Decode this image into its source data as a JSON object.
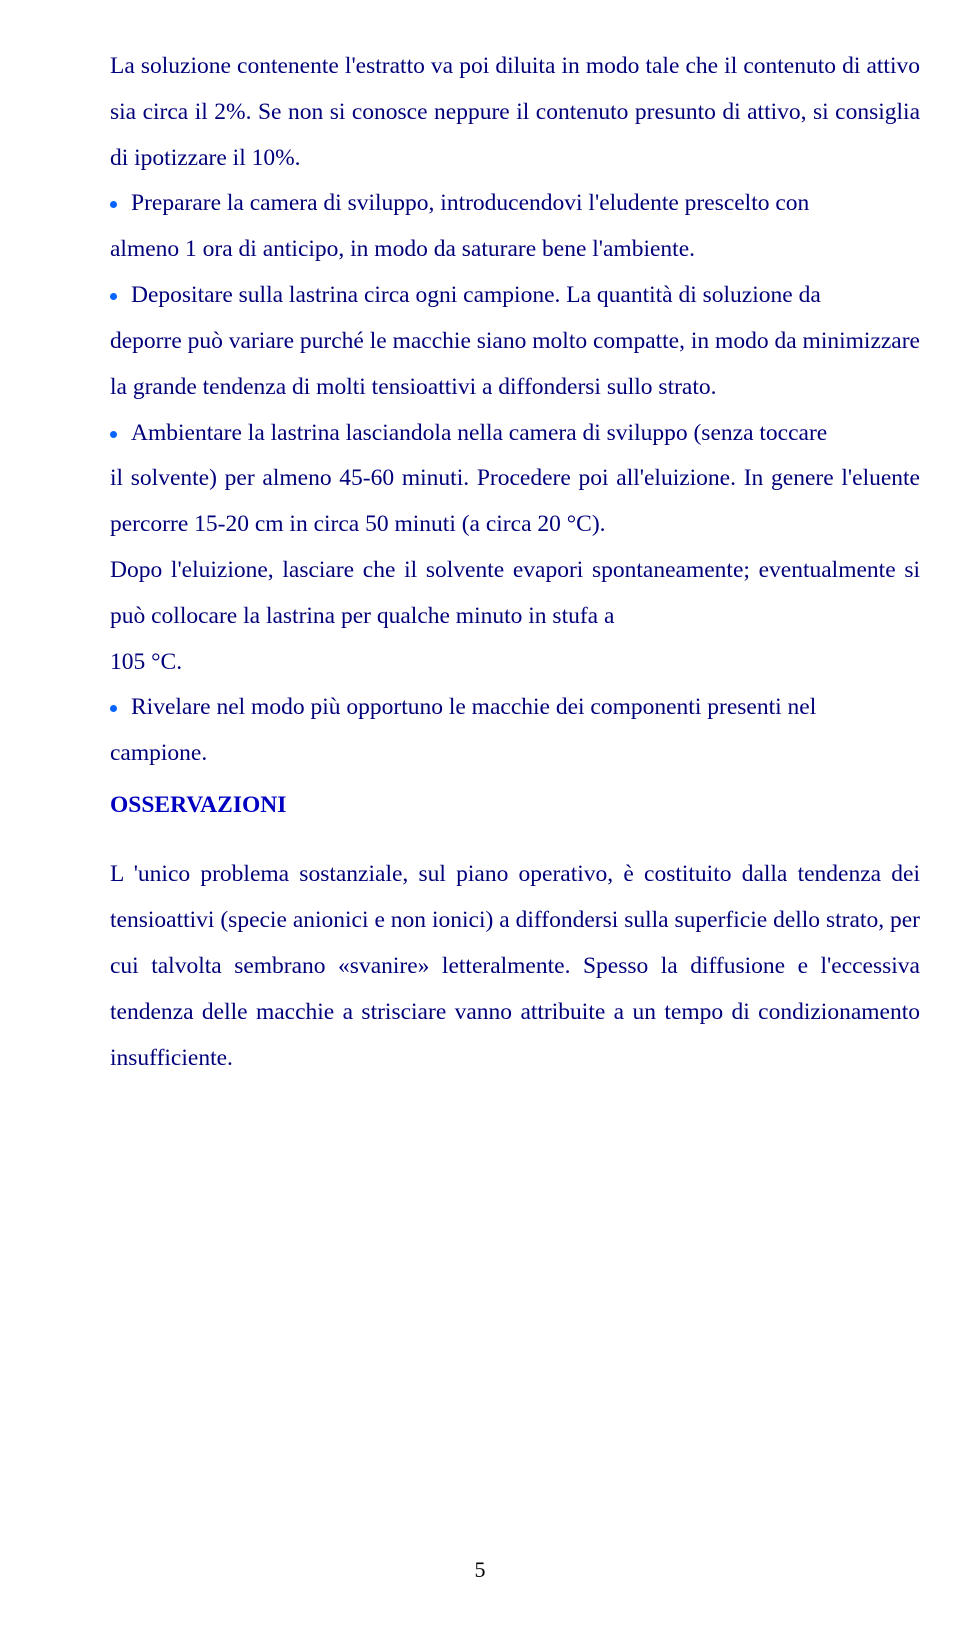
{
  "intro": "La soluzione contenente l'estratto va poi diluita in modo tale che il contenuto di attivo sia  circa il 2%. Se non si conosce neppure il contenuto presunto di attivo, si consiglia di ipotizzare il 10%.",
  "b1_first": "Preparare la camera di sviluppo, introducendovi l'eludente prescelto con",
  "b1_rest": "almeno 1 ora di anticipo, in modo da saturare bene l'ambiente.",
  "b2_first": "Depositare sulla lastrina circa  ogni campione. La quantità di soluzione da",
  "b2_rest": "deporre può variare purché le macchie siano molto compatte, in modo da minimizzare la grande tendenza di molti tensioattivi a diffondersi sullo strato.",
  "b3_first": "Ambientare la lastrina lasciandola nella camera di sviluppo (senza toccare",
  "b3_rest": "il solvente) per almeno 45-60 minuti. Procedere poi all'eluizione. In genere l'eluente percorre 15-20 cm in circa 50 minuti (a  circa 20 °C).",
  "after3a": "Dopo l'eluizione, lasciare che il solvente evapori spontaneamente; eventualmente si può collocare la lastrina per qualche minuto in stufa a",
  "after3b": " 105 °C.",
  "b4_first": "Rivelare nel modo più opportuno le macchie dei componenti presenti nel",
  "b4_rest": "campione.",
  "obs_heading": "OSSERVAZIONI",
  "obs_body": "L 'unico problema sostanziale, sul piano operativo, è costituito dalla tendenza dei tensioattivi (specie anionici e non ionici) a diffondersi sulla superficie dello strato, per cui talvolta sembrano «svanire» letteralmente. Spesso la diffusione e l'eccessiva tendenza delle macchie a strisciare vanno attribuite a un tempo di condizionamento insufficiente.",
  "pagenum": "5",
  "colors": {
    "text": "#00007a",
    "bullet": "#0563ff",
    "heading": "#0000c0",
    "background": "#ffffff"
  }
}
